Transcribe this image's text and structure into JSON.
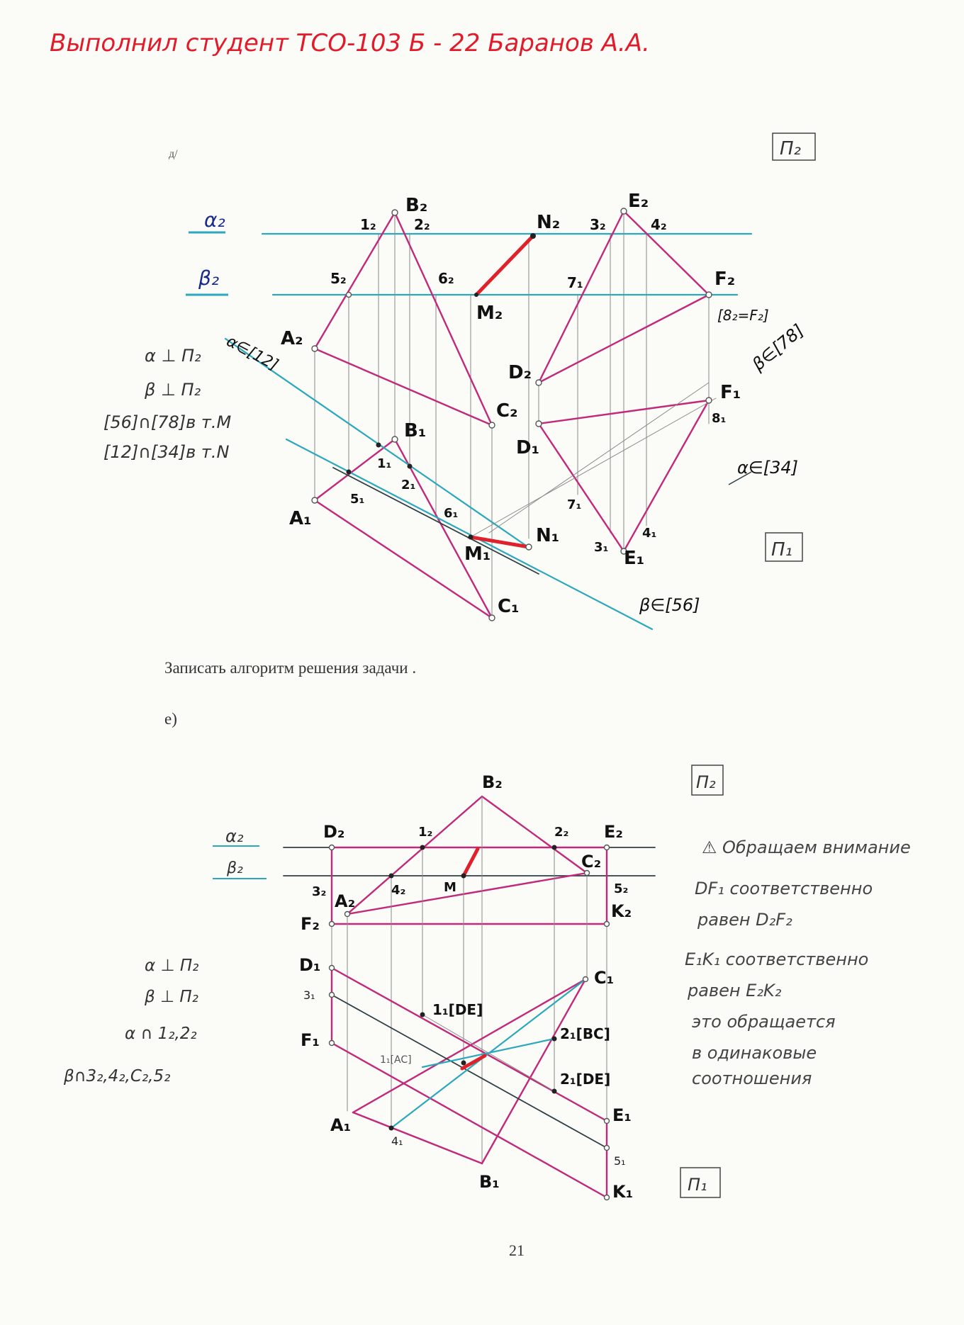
{
  "header": {
    "student_line": "Выполнил студент ТСО-103 Б - 22 Баранов А.А."
  },
  "page": {
    "task_d_label": "д/",
    "task_e_label": "е)",
    "algorithm_prompt": "Записать алгоритм решения задачи .",
    "page_number": "21"
  },
  "problem_d": {
    "plane_p2": "П₂",
    "plane_p1": "П₁",
    "alpha2": "α₂",
    "beta2": "β₂",
    "notes": [
      "α ⊥ П₂",
      "β ⊥ П₂",
      "[56]∩[78]в т.M",
      "[12]∩[34]в т.N"
    ],
    "annotations": {
      "alpha_12": "α∈[12]",
      "beta_78": "β∈[78]",
      "alpha_34": "α∈[34]",
      "beta_56": "β∈[56]",
      "f2_eq": "[8₂=F₂]"
    },
    "labels": {
      "A2": "A₂",
      "B2": "B₂",
      "C2": "C₂",
      "D2": "D₂",
      "E2": "E₂",
      "F2": "F₂",
      "M2": "M₂",
      "N2": "N₂",
      "n12": "1₂",
      "n22": "2₂",
      "n32": "3₂",
      "n42": "4₂",
      "n52": "5₂",
      "n62": "6₂",
      "n71top": "7₁",
      "A1": "A₁",
      "B1": "B₁",
      "C1": "C₁",
      "D1": "D₁",
      "E1": "E₁",
      "F1": "F₁",
      "M1": "M₁",
      "N1": "N₁",
      "n11": "1₁",
      "n21": "2₁",
      "n31": "3₁",
      "n41": "4₁",
      "n51": "5₁",
      "n61": "6₁",
      "n71": "7₁",
      "n81": "8₁"
    }
  },
  "problem_e": {
    "plane_p2": "П₂",
    "plane_p1": "П₁",
    "alpha2": "α₂",
    "beta2": "β₂",
    "notes": [
      "α ⊥ П₂",
      "β ⊥ П₂",
      "α ∩ 1₂,2₂",
      "β∩3₂,4₂,C₂,5₂"
    ],
    "remark": [
      "⚠ Обращаем внимание",
      "DF₁ соответственно",
      "равен D₂F₂",
      "E₁K₁ соответственно",
      "равен E₂K₂",
      "это обращается",
      "в одинаковые",
      "соотношения"
    ],
    "labels": {
      "B2": "B₂",
      "D2": "D₂",
      "E2": "E₂",
      "C2": "C₂",
      "A2": "A₂",
      "F2": "F₂",
      "K2": "K₂",
      "n12": "1₂",
      "n22": "2₂",
      "n32": "3₂",
      "n42": "4₂",
      "n52": "5₂",
      "M": "M",
      "D1": "D₁",
      "C1": "C₁",
      "F1": "F₁",
      "A1": "A₁",
      "B1": "B₁",
      "E1": "E₁",
      "K1": "K₁",
      "n31": "3₁",
      "n41": "4₁",
      "n51": "5₁",
      "l1DE": "1₁[DE]",
      "l1AC": "1₁[AC]",
      "l2BC": "2₁[BC]",
      "l2DE": "2₁[DE]"
    }
  }
}
